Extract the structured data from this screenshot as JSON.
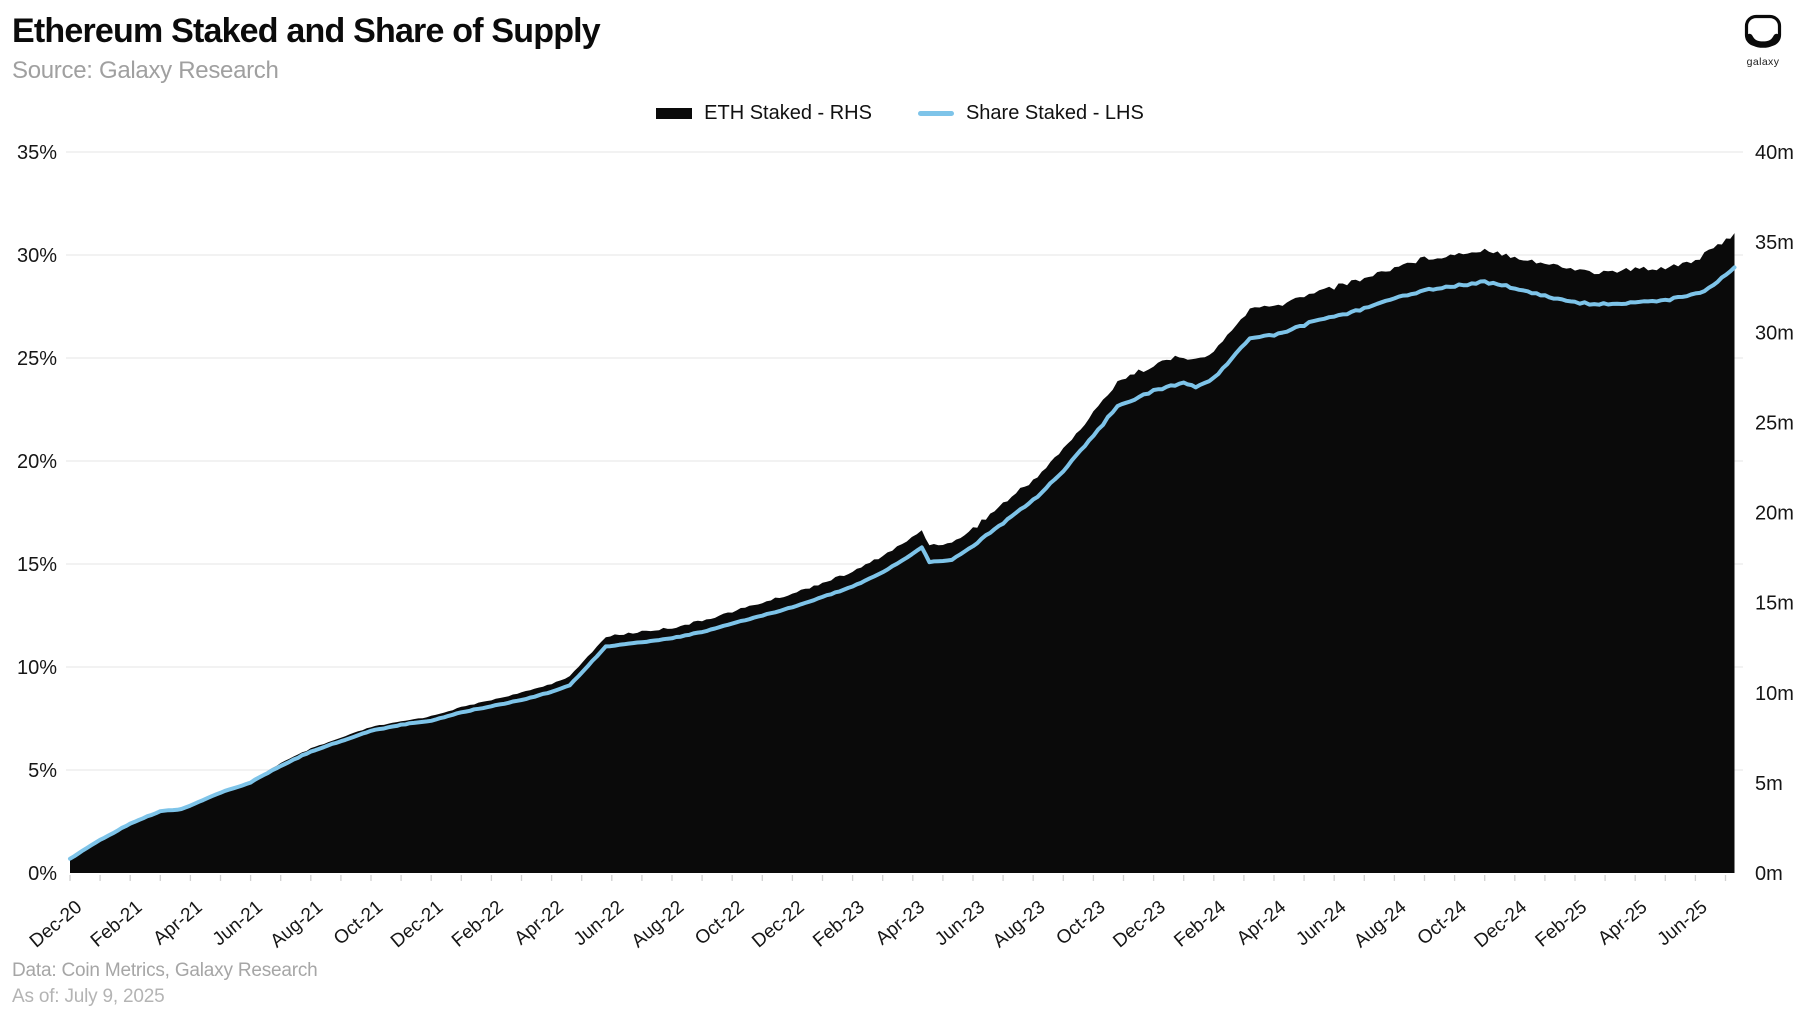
{
  "header": {
    "title": "Ethereum Staked and Share of Supply",
    "source": "Source: Galaxy Research"
  },
  "logo": {
    "label": "galaxy"
  },
  "legend": [
    {
      "label": "ETH Staked - RHS",
      "color": "#0a0a0a",
      "type": "area"
    },
    {
      "label": "Share Staked - LHS",
      "color": "#7ec4e9",
      "type": "line"
    }
  ],
  "footer": {
    "line1": "Data: Coin Metrics, Galaxy Research",
    "line2": "As of: July 9, 2025"
  },
  "chart_data": {
    "type": "area",
    "title": "Ethereum Staked and Share of Supply",
    "t_unit": "months since Dec-2020",
    "x_tick_labels": [
      "Dec-20",
      "Feb-21",
      "Apr-21",
      "Jun-21",
      "Aug-21",
      "Oct-21",
      "Dec-21",
      "Feb-22",
      "Apr-22",
      "Jun-22",
      "Aug-22",
      "Oct-22",
      "Dec-22",
      "Feb-23",
      "Apr-23",
      "Jun-23",
      "Aug-23",
      "Oct-23",
      "Dec-23",
      "Feb-24",
      "Apr-24",
      "Jun-24",
      "Aug-24",
      "Oct-24",
      "Dec-24",
      "Feb-25",
      "Apr-25",
      "Jun-25"
    ],
    "left_axis": {
      "side": "left",
      "unit": "%",
      "min": 0,
      "max": 35,
      "step": 5,
      "ticks": [
        "0%",
        "5%",
        "10%",
        "15%",
        "20%",
        "25%",
        "30%",
        "35%"
      ]
    },
    "right_axis": {
      "side": "right",
      "unit": "m",
      "min": 0,
      "max": 40,
      "step": 5,
      "ticks": [
        "0m",
        "5m",
        "10m",
        "15m",
        "20m",
        "25m",
        "30m",
        "35m",
        "40m"
      ]
    },
    "grid": true,
    "legend_position": "top-center",
    "series": [
      {
        "name": "ETH Staked - RHS",
        "axis": "right",
        "style": "area",
        "color": "#0a0a0a",
        "unit": "million ETH",
        "points": [
          [
            0,
            0.8
          ],
          [
            1,
            1.9
          ],
          [
            2,
            2.8
          ],
          [
            3,
            3.5
          ],
          [
            3.7,
            3.6
          ],
          [
            5,
            4.5
          ],
          [
            6,
            5.1
          ],
          [
            7,
            6.1
          ],
          [
            8,
            6.9
          ],
          [
            9,
            7.5
          ],
          [
            10,
            8.1
          ],
          [
            11,
            8.4
          ],
          [
            12,
            8.7
          ],
          [
            13,
            9.2
          ],
          [
            14,
            9.6
          ],
          [
            15,
            10.0
          ],
          [
            16,
            10.5
          ],
          [
            16.6,
            10.9
          ],
          [
            17.8,
            13.1
          ],
          [
            19,
            13.4
          ],
          [
            20,
            13.6
          ],
          [
            21,
            14.0
          ],
          [
            22,
            14.5
          ],
          [
            23,
            15.0
          ],
          [
            24,
            15.5
          ],
          [
            25,
            16.1
          ],
          [
            26,
            16.7
          ],
          [
            27,
            17.6
          ],
          [
            27.8,
            18.4
          ],
          [
            28.3,
            19.0
          ],
          [
            28.55,
            18.2
          ],
          [
            29.3,
            18.3
          ],
          [
            30,
            19.1
          ],
          [
            31,
            20.5
          ],
          [
            32,
            21.8
          ],
          [
            33,
            23.5
          ],
          [
            34,
            25.5
          ],
          [
            34.8,
            27.3
          ],
          [
            35.5,
            27.8
          ],
          [
            36,
            28.2
          ],
          [
            37,
            28.7
          ],
          [
            37.4,
            28.4
          ],
          [
            38,
            28.9
          ],
          [
            39.2,
            31.3
          ],
          [
            40,
            31.4
          ],
          [
            41,
            32.0
          ],
          [
            41.5,
            32.4
          ],
          [
            42,
            32.5
          ],
          [
            43,
            33.0
          ],
          [
            44,
            33.6
          ],
          [
            45,
            34.1
          ],
          [
            46,
            34.3
          ],
          [
            47,
            34.6
          ],
          [
            48,
            34.2
          ],
          [
            49,
            33.8
          ],
          [
            50,
            33.5
          ],
          [
            50.8,
            33.3
          ],
          [
            52,
            33.5
          ],
          [
            53,
            33.6
          ],
          [
            54,
            34.0
          ],
          [
            54.6,
            34.6
          ],
          [
            55.3,
            35.5
          ]
        ]
      },
      {
        "name": "Share Staked - LHS",
        "axis": "left",
        "style": "line",
        "color": "#7ec4e9",
        "unit": "% of supply",
        "points": [
          [
            0,
            0.7
          ],
          [
            1,
            1.6
          ],
          [
            2,
            2.4
          ],
          [
            3,
            3.0
          ],
          [
            3.7,
            3.1
          ],
          [
            5,
            3.9
          ],
          [
            6,
            4.4
          ],
          [
            7,
            5.2
          ],
          [
            8,
            5.9
          ],
          [
            9,
            6.4
          ],
          [
            10,
            6.9
          ],
          [
            11,
            7.2
          ],
          [
            12,
            7.4
          ],
          [
            13,
            7.8
          ],
          [
            14,
            8.1
          ],
          [
            15,
            8.4
          ],
          [
            16,
            8.8
          ],
          [
            16.6,
            9.1
          ],
          [
            17.8,
            11.0
          ],
          [
            19,
            11.2
          ],
          [
            20,
            11.4
          ],
          [
            21,
            11.7
          ],
          [
            22,
            12.1
          ],
          [
            23,
            12.5
          ],
          [
            24,
            12.9
          ],
          [
            25,
            13.4
          ],
          [
            26,
            13.9
          ],
          [
            27,
            14.6
          ],
          [
            27.8,
            15.3
          ],
          [
            28.3,
            15.8
          ],
          [
            28.55,
            15.1
          ],
          [
            29.3,
            15.2
          ],
          [
            30,
            15.9
          ],
          [
            31,
            17.0
          ],
          [
            32,
            18.1
          ],
          [
            33,
            19.5
          ],
          [
            34,
            21.2
          ],
          [
            34.8,
            22.7
          ],
          [
            35.5,
            23.1
          ],
          [
            36,
            23.4
          ],
          [
            37,
            23.8
          ],
          [
            37.4,
            23.6
          ],
          [
            38,
            24.0
          ],
          [
            39.2,
            26.0
          ],
          [
            40,
            26.1
          ],
          [
            41,
            26.6
          ],
          [
            41.5,
            26.9
          ],
          [
            42,
            27.0
          ],
          [
            43,
            27.4
          ],
          [
            44,
            27.9
          ],
          [
            45,
            28.3
          ],
          [
            46,
            28.5
          ],
          [
            47,
            28.7
          ],
          [
            48,
            28.4
          ],
          [
            49,
            28.0
          ],
          [
            50,
            27.7
          ],
          [
            50.8,
            27.6
          ],
          [
            52,
            27.7
          ],
          [
            53,
            27.8
          ],
          [
            54,
            28.1
          ],
          [
            54.6,
            28.5
          ],
          [
            55.3,
            29.4
          ]
        ]
      }
    ]
  }
}
